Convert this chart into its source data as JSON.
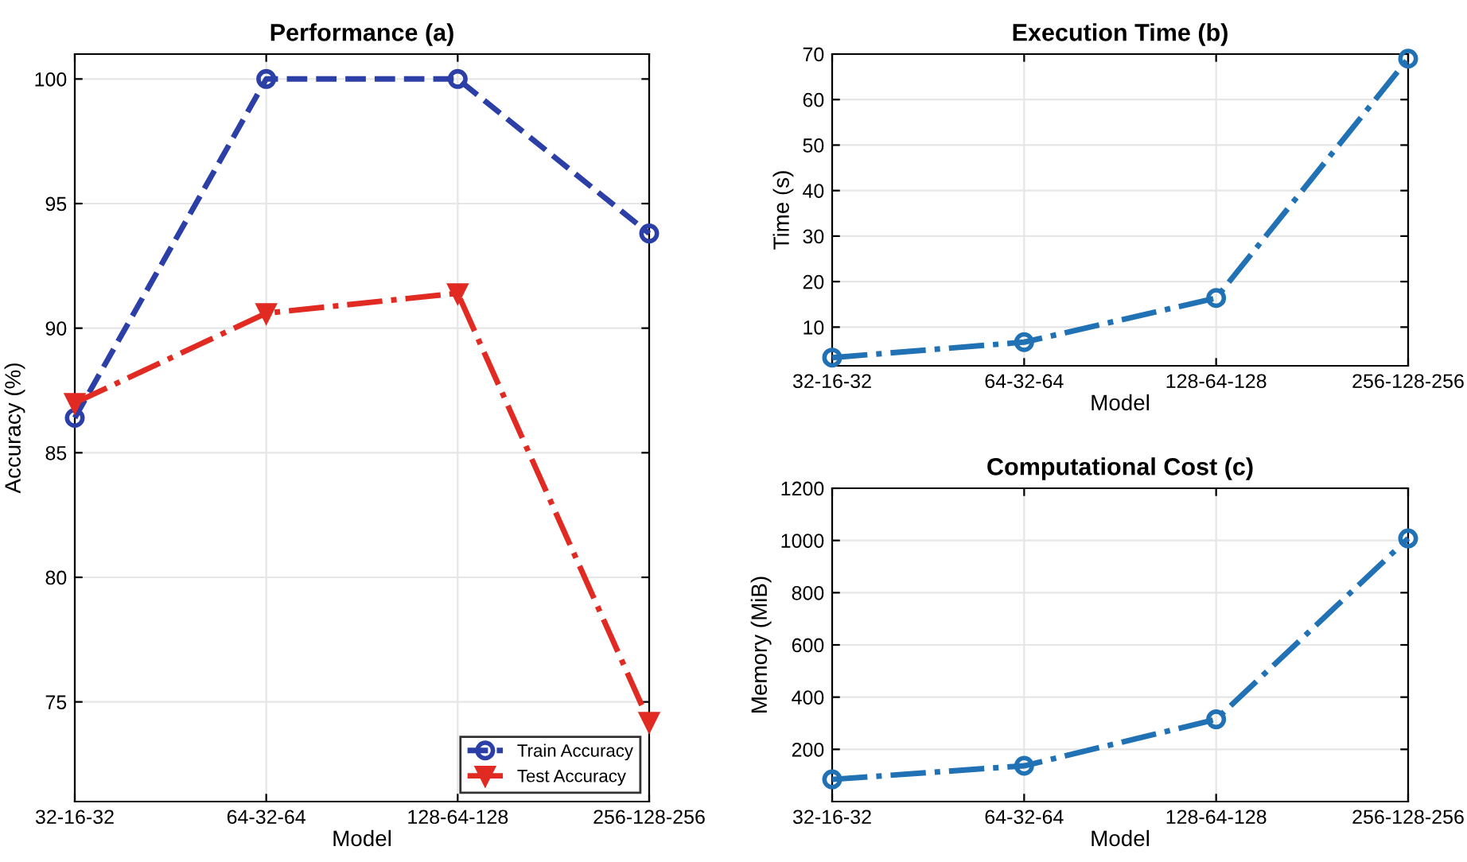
{
  "chart_data": [
    {
      "type": "line",
      "title": "Performance (a)",
      "xlabel": "Model",
      "ylabel": "Accuracy (%)",
      "categories": [
        "32-16-32",
        "64-32-64",
        "128-64-128",
        "256-128-256"
      ],
      "ylim": [
        71,
        101
      ],
      "yticks": [
        75,
        80,
        85,
        90,
        95,
        100
      ],
      "grid": true,
      "legend": "bottom right",
      "series": [
        {
          "name": "Train Accuracy",
          "color": "#2b3fa6",
          "values": [
            86.4,
            100,
            100,
            93.8
          ],
          "marker": "circle",
          "line_style": "dashed"
        },
        {
          "name": "Test Accuracy",
          "color": "#e02a22",
          "values": [
            87.0,
            90.6,
            91.4,
            74.2
          ],
          "marker": "triangle",
          "line_style": "dashdot"
        }
      ]
    },
    {
      "type": "line",
      "title": "Execution Time (b)",
      "xlabel": "Model",
      "ylabel": "Time (s)",
      "categories": [
        "32-16-32",
        "64-32-64",
        "128-64-128",
        "256-128-256"
      ],
      "ylim": [
        1.5,
        70
      ],
      "yticks": [
        10,
        20,
        30,
        40,
        50,
        60,
        70
      ],
      "grid": true,
      "series": [
        {
          "color": "#2171b5",
          "values": [
            3.3,
            6.7,
            16.4,
            69
          ],
          "marker": "circle",
          "line_style": "dashdot"
        }
      ]
    },
    {
      "type": "line",
      "title": "Computational Cost (c)",
      "xlabel": "Model",
      "ylabel": "Memory (MiB)",
      "categories": [
        "32-16-32",
        "64-32-64",
        "128-64-128",
        "256-128-256"
      ],
      "ylim": [
        0,
        1200
      ],
      "yticks": [
        200,
        400,
        600,
        800,
        1000,
        1200
      ],
      "grid": true,
      "series": [
        {
          "color": "#2171b5",
          "values": [
            85,
            137,
            315,
            1008
          ],
          "marker": "circle",
          "line_style": "dashdot"
        }
      ]
    }
  ]
}
